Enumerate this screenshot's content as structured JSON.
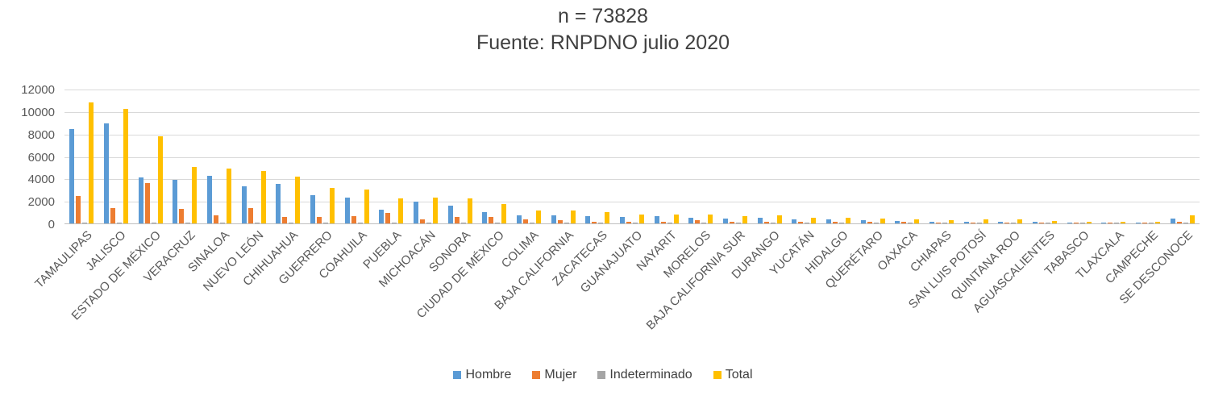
{
  "title": {
    "line1": "n = 73828",
    "line2": "Fuente: RNPDNO julio 2020"
  },
  "chart_data": {
    "type": "bar",
    "title": "n = 73828 — Fuente: RNPDNO julio 2020",
    "xlabel": "",
    "ylabel": "",
    "ylim": [
      0,
      12000
    ],
    "ytick_step": 2000,
    "grid": true,
    "legend_position": "bottom",
    "categories": [
      "TAMAULIPAS",
      "JALISCO",
      "ESTADO DE MÉXICO",
      "VERACRUZ",
      "SINALOA",
      "NUEVO LEÓN",
      "CHIHUAHUA",
      "GUERRERO",
      "COAHUILA",
      "PUEBLA",
      "MICHOACÁN",
      "SONORA",
      "CIUDAD DE MÉXICO",
      "COLIMA",
      "BAJA CALIFORNIA",
      "ZACATECAS",
      "GUANAJUATO",
      "NAYARIT",
      "MORELOS",
      "BAJA CALIFORNIA SUR",
      "DURANGO",
      "YUCATÁN",
      "HIDALGO",
      "QUERÉTARO",
      "OAXACA",
      "CHIAPAS",
      "SAN LUIS POTOSÍ",
      "QUINTANA ROO",
      "AGUASCALIENTES",
      "TABASCO",
      "TLAXCALA",
      "CAMPECHE",
      "SE DESCONOCE"
    ],
    "series": [
      {
        "name": "Hombre",
        "color": "#5B9BD5",
        "values": [
          8400,
          8900,
          4100,
          3850,
          4250,
          3300,
          3550,
          2550,
          2300,
          1250,
          1950,
          1550,
          1000,
          700,
          730,
          680,
          600,
          640,
          500,
          450,
          490,
          330,
          330,
          310,
          210,
          130,
          110,
          130,
          110,
          90,
          80,
          60,
          430
        ]
      },
      {
        "name": "Mujer",
        "color": "#ED7D31",
        "values": [
          2450,
          1400,
          3600,
          1300,
          700,
          1400,
          550,
          600,
          650,
          900,
          350,
          600,
          600,
          380,
          320,
          180,
          160,
          140,
          290,
          160,
          180,
          120,
          130,
          110,
          110,
          80,
          80,
          90,
          80,
          70,
          60,
          40,
          120
        ]
      },
      {
        "name": "Indeterminado",
        "color": "#A5A5A5",
        "values": [
          60,
          50,
          100,
          60,
          50,
          40,
          40,
          40,
          40,
          60,
          40,
          40,
          50,
          30,
          30,
          30,
          40,
          20,
          30,
          20,
          20,
          20,
          30,
          20,
          20,
          20,
          40,
          20,
          20,
          20,
          20,
          10,
          30
        ]
      },
      {
        "name": "Total",
        "color": "#FFC000",
        "values": [
          10750,
          10200,
          7750,
          5050,
          4900,
          4650,
          4150,
          3150,
          3000,
          2250,
          2300,
          2250,
          1700,
          1150,
          1130,
          1000,
          820,
          800,
          780,
          620,
          690,
          470,
          480,
          430,
          330,
          280,
          350,
          330,
          250,
          180,
          140,
          110,
          700
        ]
      }
    ]
  }
}
